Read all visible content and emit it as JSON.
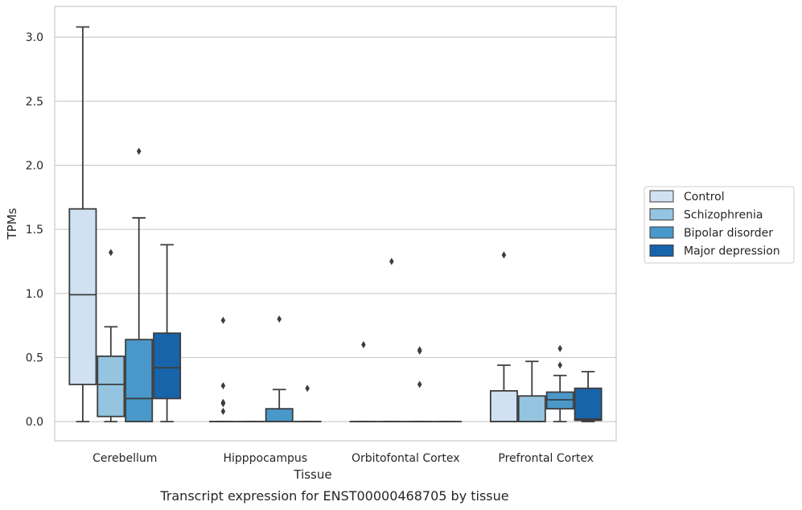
{
  "caption": "Transcript expression for ENST00000468705 by tissue",
  "chart_data": {
    "type": "box",
    "xlabel": "Tissue",
    "ylabel": "TPMs",
    "ylim": [
      -0.15,
      3.24
    ],
    "yticks": [
      0.0,
      0.5,
      1.0,
      1.5,
      2.0,
      2.5,
      3.0
    ],
    "ytick_labels": [
      "0.0",
      "0.5",
      "1.0",
      "1.5",
      "2.0",
      "2.5",
      "3.0"
    ],
    "grid": "horizontal",
    "legend_position": "right",
    "categories": [
      "Cerebellum",
      "Hipppocampus",
      "Orbitofontal Cortex",
      "Prefrontal Cortex"
    ],
    "series": [
      {
        "name": "Control",
        "color": "#d0e1f2",
        "boxes": [
          {
            "whisker_low": 0.0,
            "q1": 0.29,
            "median": 0.99,
            "q3": 1.66,
            "whisker_high": 3.08,
            "outliers": []
          },
          {
            "whisker_low": 0.0,
            "q1": 0.0,
            "median": 0.0,
            "q3": 0.0,
            "whisker_high": 0.0,
            "outliers": [
              0.08,
              0.14,
              0.15,
              0.28,
              0.79
            ]
          },
          {
            "whisker_low": 0.0,
            "q1": 0.0,
            "median": 0.0,
            "q3": 0.0,
            "whisker_high": 0.0,
            "outliers": [
              0.6
            ]
          },
          {
            "whisker_low": 0.0,
            "q1": 0.0,
            "median": 0.0,
            "q3": 0.24,
            "whisker_high": 0.44,
            "outliers": [
              1.3
            ]
          }
        ]
      },
      {
        "name": "Schizophrenia",
        "color": "#94c4df",
        "boxes": [
          {
            "whisker_low": 0.0,
            "q1": 0.04,
            "median": 0.29,
            "q3": 0.51,
            "whisker_high": 0.74,
            "outliers": [
              1.32
            ]
          },
          {
            "whisker_low": 0.0,
            "q1": 0.0,
            "median": 0.0,
            "q3": 0.0,
            "whisker_high": 0.0,
            "outliers": []
          },
          {
            "whisker_low": 0.0,
            "q1": 0.0,
            "median": 0.0,
            "q3": 0.0,
            "whisker_high": 0.0,
            "outliers": [
              1.25
            ]
          },
          {
            "whisker_low": 0.0,
            "q1": 0.0,
            "median": 0.0,
            "q3": 0.2,
            "whisker_high": 0.47,
            "outliers": []
          }
        ]
      },
      {
        "name": "Bipolar disorder",
        "color": "#4a98c9",
        "boxes": [
          {
            "whisker_low": 0.0,
            "q1": 0.0,
            "median": 0.18,
            "q3": 0.64,
            "whisker_high": 1.59,
            "outliers": [
              2.11
            ]
          },
          {
            "whisker_low": 0.0,
            "q1": 0.0,
            "median": 0.0,
            "q3": 0.1,
            "whisker_high": 0.25,
            "outliers": [
              0.8
            ]
          },
          {
            "whisker_low": 0.0,
            "q1": 0.0,
            "median": 0.0,
            "q3": 0.0,
            "whisker_high": 0.0,
            "outliers": [
              0.29,
              0.55,
              0.56
            ]
          },
          {
            "whisker_low": 0.0,
            "q1": 0.1,
            "median": 0.17,
            "q3": 0.23,
            "whisker_high": 0.36,
            "outliers": [
              0.44,
              0.57
            ]
          }
        ]
      },
      {
        "name": "Major depression",
        "color": "#1764ab",
        "boxes": [
          {
            "whisker_low": 0.0,
            "q1": 0.18,
            "median": 0.42,
            "q3": 0.69,
            "whisker_high": 1.38,
            "outliers": []
          },
          {
            "whisker_low": 0.0,
            "q1": 0.0,
            "median": 0.0,
            "q3": 0.0,
            "whisker_high": 0.0,
            "outliers": [
              0.26
            ]
          },
          {
            "whisker_low": 0.0,
            "q1": 0.0,
            "median": 0.0,
            "q3": 0.0,
            "whisker_high": 0.0,
            "outliers": []
          },
          {
            "whisker_low": 0.0,
            "q1": 0.01,
            "median": 0.02,
            "q3": 0.26,
            "whisker_high": 0.39,
            "outliers": []
          }
        ]
      }
    ]
  }
}
